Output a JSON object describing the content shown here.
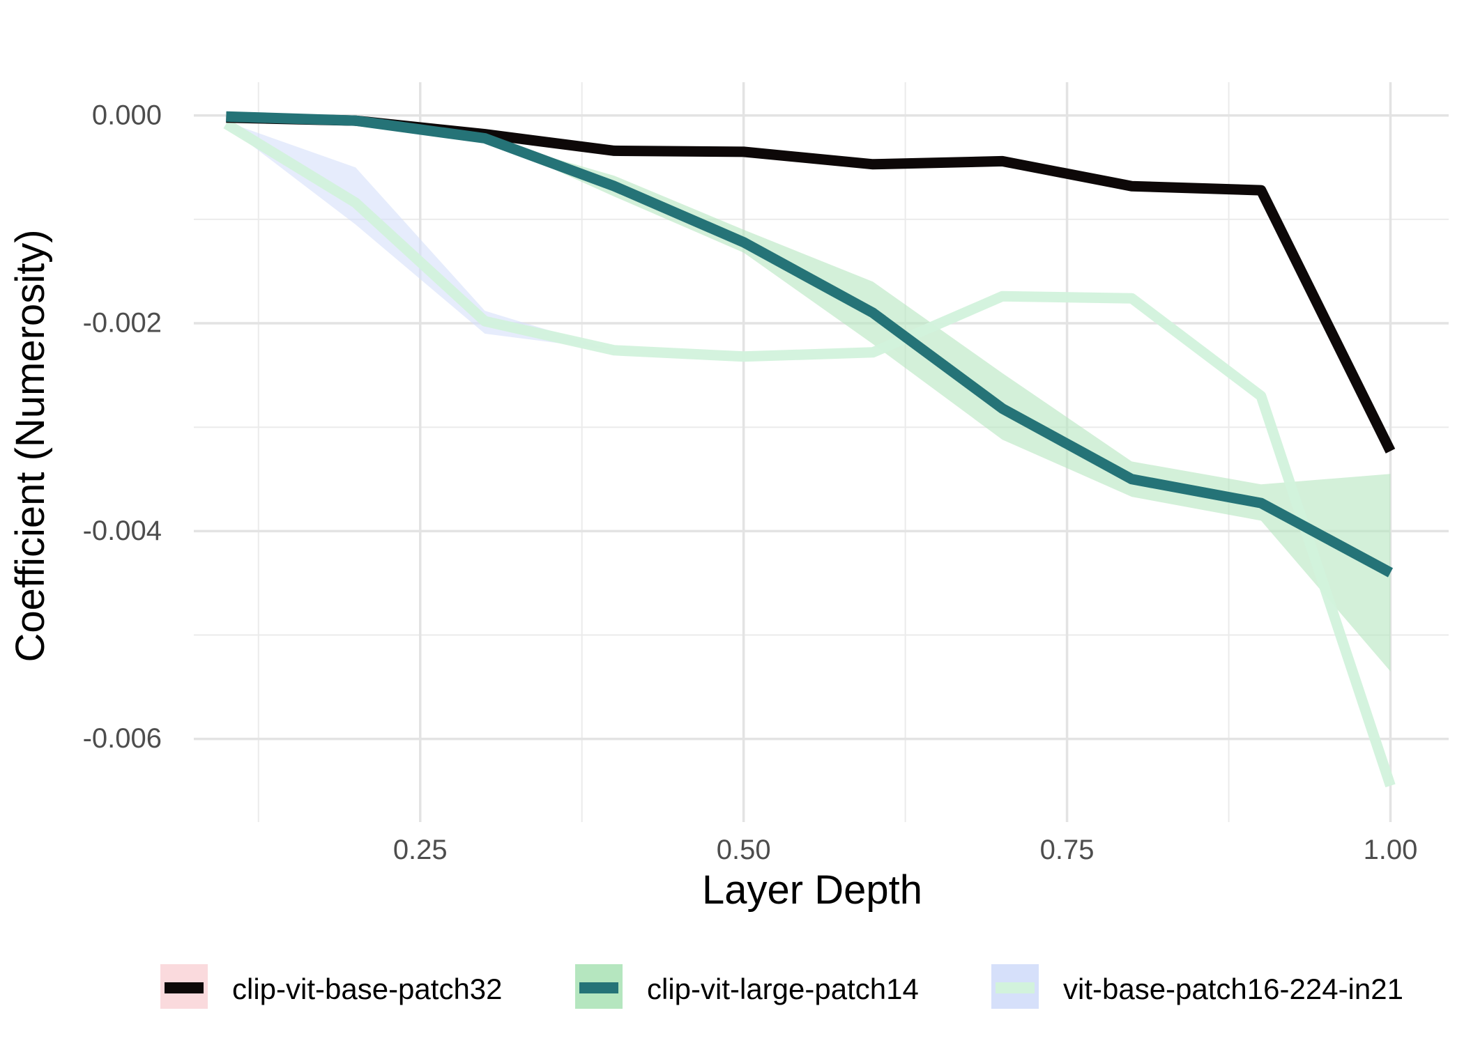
{
  "chart_data": {
    "type": "line",
    "xlabel": "Layer Depth",
    "ylabel": "Coefficient (Numerosity)",
    "xlim": [
      0.075,
      1.045
    ],
    "ylim": [
      -0.0068,
      0.00032
    ],
    "x_ticks": [
      0.25,
      0.5,
      0.75,
      1.0
    ],
    "x_tick_labels": [
      "0.25",
      "0.50",
      "0.75",
      "1.00"
    ],
    "y_ticks": [
      0.0,
      -0.002,
      -0.004,
      -0.006
    ],
    "y_tick_labels": [
      "0.000",
      "-0.002",
      "-0.004",
      "-0.006"
    ],
    "grid": true,
    "legend_position": "bottom",
    "series": [
      {
        "name": "clip-vit-base-patch32",
        "line_color": "#0d0808",
        "fill_color": "#fadadd",
        "x": [
          0.1,
          0.2,
          0.3,
          0.4,
          0.5,
          0.6,
          0.7,
          0.8,
          0.9,
          1.0
        ],
        "values": [
          -2e-05,
          -5e-05,
          -0.00018,
          -0.00034,
          -0.00035,
          -0.00047,
          -0.00044,
          -0.00068,
          -0.00072,
          -0.00323
        ],
        "lower": [
          -2e-05,
          -5e-05,
          -0.00018,
          -0.00034,
          -0.00035,
          -0.00047,
          -0.00044,
          -0.00068,
          -0.00072,
          -0.00323
        ],
        "upper": [
          -2e-05,
          -5e-05,
          -0.00018,
          -0.00034,
          -0.00035,
          -0.00047,
          -0.00044,
          -0.00068,
          -0.00072,
          -0.00323
        ]
      },
      {
        "name": "clip-vit-large-patch14",
        "line_color": "#257377",
        "fill_color": "#b5e6bf",
        "x": [
          0.1,
          0.2,
          0.3,
          0.4,
          0.5,
          0.6,
          0.7,
          0.8,
          0.9,
          1.0
        ],
        "values": [
          -1e-05,
          -5e-05,
          -0.00022,
          -0.00068,
          -0.00122,
          -0.0019,
          -0.00282,
          -0.0035,
          -0.00373,
          -0.0044
        ],
        "lower": [
          -1e-05,
          -5e-05,
          -0.00022,
          -0.00078,
          -0.00132,
          -0.0022,
          -0.00312,
          -0.00367,
          -0.0039,
          -0.00535
        ],
        "upper": [
          -1e-05,
          -5e-05,
          -0.00022,
          -0.00058,
          -0.0011,
          -0.0016,
          -0.00248,
          -0.00333,
          -0.00355,
          -0.00345
        ]
      },
      {
        "name": "vit-base-patch16-224-in21",
        "line_color": "#d2f2dc",
        "fill_color": "#d6e0fa",
        "x": [
          0.1,
          0.2,
          0.3,
          0.4,
          0.5,
          0.6,
          0.7,
          0.8,
          0.9,
          1.0
        ],
        "values": [
          -8e-05,
          -0.00084,
          -0.00198,
          -0.00226,
          -0.00232,
          -0.00228,
          -0.00174,
          -0.00176,
          -0.0027,
          -0.00645
        ],
        "lower": [
          -0.0001,
          -0.00105,
          -0.0021,
          -0.00226,
          -0.00232,
          -0.00228,
          -0.00174,
          -0.00176,
          -0.0027,
          -0.00645
        ],
        "upper": [
          -6e-05,
          -0.0005,
          -0.00188,
          -0.00226,
          -0.00232,
          -0.00228,
          -0.00174,
          -0.00176,
          -0.0027,
          -0.00645
        ]
      }
    ]
  }
}
